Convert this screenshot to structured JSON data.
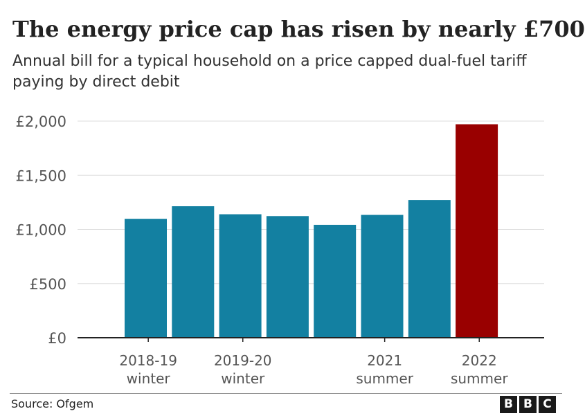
{
  "title": "The energy price cap has risen by nearly £700",
  "subtitle": "Annual bill for a typical household on a price capped dual-fuel tariff paying by direct debit",
  "source": "Source: Ofgem",
  "logo": [
    "B",
    "B",
    "C"
  ],
  "colors": {
    "bar": "#1380a1",
    "highlight": "#990000",
    "grid": "#dddddd",
    "axis": "#222222",
    "tick_text": "#555555"
  },
  "chart_data": {
    "type": "bar",
    "title": "The energy price cap has risen by nearly £700",
    "ylim": [
      0,
      2000
    ],
    "grid": true,
    "yticks": [
      {
        "value": 0,
        "label": "£0"
      },
      {
        "value": 500,
        "label": "£500"
      },
      {
        "value": 1000,
        "label": "£1,000"
      },
      {
        "value": 1500,
        "label": "£1,500"
      },
      {
        "value": 2000,
        "label": "£2,000"
      }
    ],
    "values": [
      1098,
      1214,
      1140,
      1123,
      1042,
      1134,
      1271,
      1971
    ],
    "highlight_index": 7,
    "xticks": [
      {
        "bar": 0.5,
        "line1": "2018-19",
        "line2": "winter"
      },
      {
        "bar": 2.5,
        "line1": "2019-20",
        "line2": "winter"
      },
      {
        "bar": 5.5,
        "line1": "2021",
        "line2": "summer"
      },
      {
        "bar": 7.5,
        "line1": "2022",
        "line2": "summer"
      }
    ]
  }
}
